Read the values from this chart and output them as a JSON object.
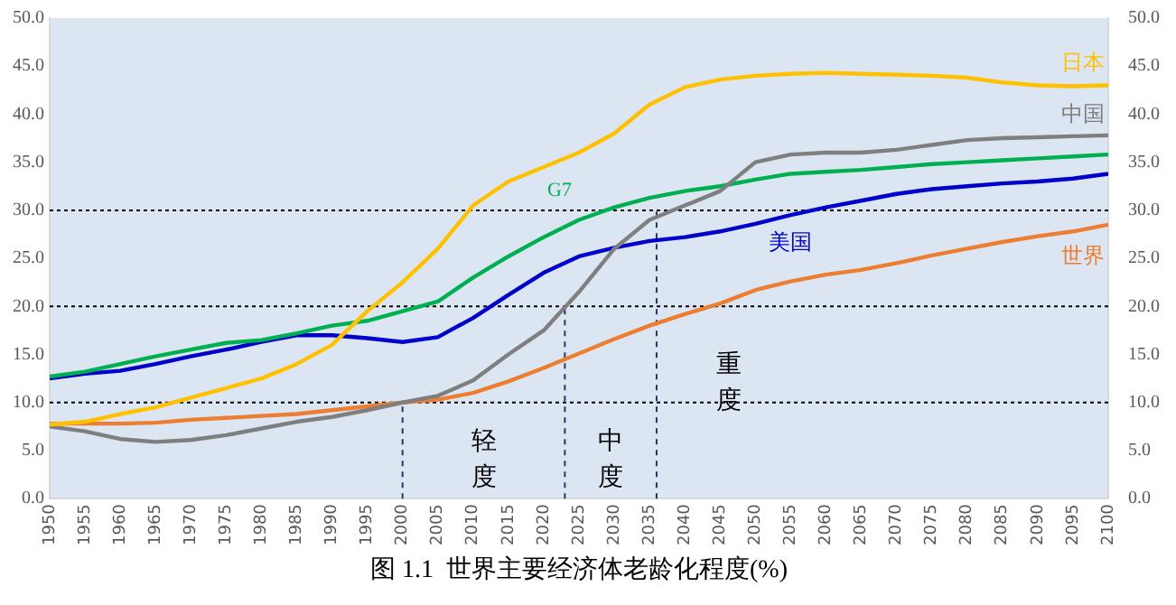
{
  "chart_data": {
    "type": "line",
    "title": "图 1.1  世界主要经济体老龄化程度(%)",
    "x": [
      1950,
      1955,
      1960,
      1965,
      1970,
      1975,
      1980,
      1985,
      1990,
      1995,
      2000,
      2005,
      2010,
      2015,
      2020,
      2025,
      2030,
      2035,
      2040,
      2045,
      2050,
      2055,
      2060,
      2065,
      2070,
      2075,
      2080,
      2085,
      2090,
      2095,
      2100
    ],
    "xlim": [
      1950,
      2100
    ],
    "xticks": [
      1950,
      1955,
      1960,
      1965,
      1970,
      1975,
      1980,
      1985,
      1990,
      1995,
      2000,
      2005,
      2010,
      2015,
      2020,
      2025,
      2030,
      2035,
      2040,
      2045,
      2050,
      2055,
      2060,
      2065,
      2070,
      2075,
      2080,
      2085,
      2090,
      2095,
      2100
    ],
    "series": [
      {
        "name": "日本",
        "color": "#ffc000",
        "values": [
          7.7,
          8.0,
          8.8,
          9.5,
          10.5,
          11.5,
          12.5,
          14,
          16,
          19.5,
          22.5,
          26,
          30.5,
          33,
          34.5,
          36,
          38,
          41,
          42.8,
          43.6,
          44,
          44.2,
          44.3,
          44.2,
          44.1,
          44,
          43.8,
          43.3,
          43,
          42.9,
          43
        ]
      },
      {
        "name": "中国",
        "color": "#7f7f7f",
        "values": [
          7.5,
          7,
          6.2,
          5.9,
          6.1,
          6.6,
          7.3,
          8,
          8.5,
          9.2,
          10,
          10.7,
          12.3,
          15,
          17.5,
          21.5,
          26,
          29,
          30.5,
          32,
          35,
          35.8,
          36,
          36,
          36.3,
          36.8,
          37.3,
          37.5,
          37.6,
          37.7,
          37.8
        ]
      },
      {
        "name": "G7",
        "color": "#00b050",
        "values": [
          12.7,
          13.2,
          14,
          14.8,
          15.5,
          16.2,
          16.5,
          17.2,
          18,
          18.5,
          19.5,
          20.5,
          23,
          25.2,
          27.2,
          29,
          30.3,
          31.3,
          32,
          32.5,
          33.2,
          33.8,
          34,
          34.2,
          34.5,
          34.8,
          35,
          35.2,
          35.4,
          35.6,
          35.8
        ]
      },
      {
        "name": "美国",
        "color": "#0000cc",
        "values": [
          12.5,
          13,
          13.3,
          14,
          14.8,
          15.5,
          16.3,
          17,
          17,
          16.7,
          16.3,
          16.8,
          18.8,
          21.2,
          23.5,
          25.2,
          26.1,
          26.8,
          27.2,
          27.8,
          28.6,
          29.5,
          30.3,
          31,
          31.7,
          32.2,
          32.5,
          32.8,
          33,
          33.3,
          33.8
        ]
      },
      {
        "name": "世界",
        "color": "#ed7d31",
        "values": [
          7.8,
          7.8,
          7.8,
          7.9,
          8.2,
          8.4,
          8.6,
          8.8,
          9.2,
          9.6,
          10,
          10.3,
          11,
          12.2,
          13.6,
          15.1,
          16.6,
          18,
          19.2,
          20.3,
          21.7,
          22.6,
          23.3,
          23.8,
          24.5,
          25.3,
          26,
          26.7,
          27.3,
          27.8,
          28.5
        ]
      }
    ],
    "ylim": [
      0,
      50
    ],
    "yticks": [
      {
        "value": 0,
        "label": "0.0"
      },
      {
        "value": 5,
        "label": "5.0"
      },
      {
        "value": 10,
        "label": "10.0"
      },
      {
        "value": 15,
        "label": "15.0"
      },
      {
        "value": 20,
        "label": "20.0"
      },
      {
        "value": 25,
        "label": "25.0"
      },
      {
        "value": 30,
        "label": "30.0"
      },
      {
        "value": 35,
        "label": "35.0"
      },
      {
        "value": 40,
        "label": "40.0"
      },
      {
        "value": 45,
        "label": "45.0"
      },
      {
        "value": 50,
        "label": "50.0"
      }
    ],
    "y2lim": [
      0,
      50
    ],
    "y2ticks": [
      {
        "value": 0,
        "label": "0.0"
      },
      {
        "value": 5,
        "label": "5.0"
      },
      {
        "value": 10,
        "label": "10.0"
      },
      {
        "value": 15,
        "label": "15.0"
      },
      {
        "value": 20,
        "label": "20.0"
      },
      {
        "value": 25,
        "label": "25.0"
      },
      {
        "value": 30,
        "label": "30.0"
      },
      {
        "value": 35,
        "label": "35.0"
      },
      {
        "value": 40,
        "label": "40.0"
      },
      {
        "value": 45,
        "label": "45.0"
      },
      {
        "value": 50,
        "label": "50.0"
      }
    ],
    "ref_lines": [
      {
        "axis": "y",
        "value": 10,
        "line_style": "dotted",
        "color": "#000000"
      },
      {
        "axis": "y",
        "value": 20,
        "line_style": "dotted",
        "color": "#000000"
      },
      {
        "axis": "y",
        "value": 30,
        "line_style": "dotted",
        "color": "#000000"
      },
      {
        "axis": "x",
        "value": 2000,
        "line_style": "dashed",
        "color": "#1f3864"
      },
      {
        "axis": "x",
        "value": 2023,
        "line_style": "dashed",
        "color": "#1f3864"
      },
      {
        "axis": "x",
        "value": 2036,
        "line_style": "dashed",
        "color": "#1f3864"
      }
    ],
    "annotations": [
      "轻度",
      "中度",
      "重度"
    ],
    "grid": false,
    "legend": false,
    "marker": "none",
    "line_style": "solid"
  }
}
